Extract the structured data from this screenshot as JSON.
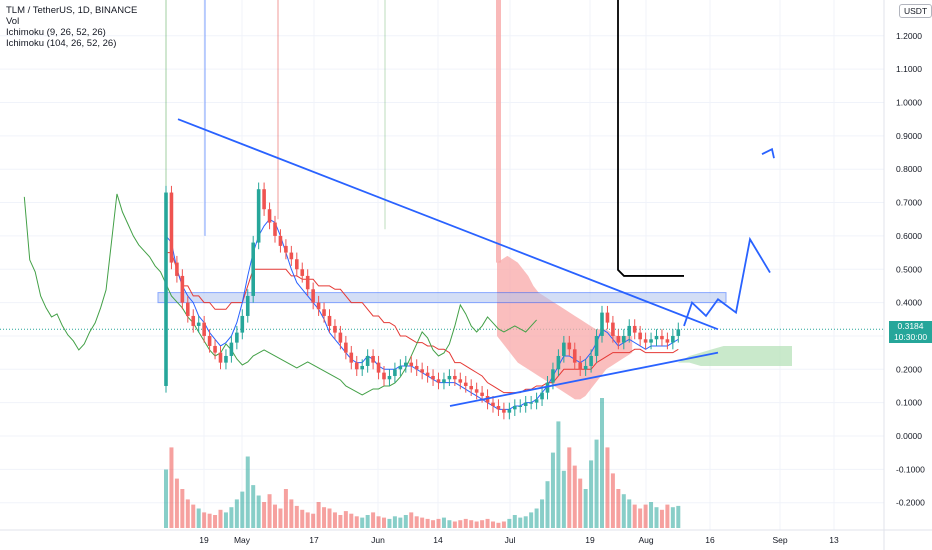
{
  "header": {
    "symbol": "TLM / TetherUS, 1D, BINANCE",
    "indicators": [
      "Vol",
      "Ichimoku (9, 26, 52, 26)",
      "Ichimoku (104, 26, 52, 26)"
    ]
  },
  "price_axis": {
    "currency": "USDT",
    "last_price": "0.3184",
    "countdown": "10:30:00"
  },
  "colors": {
    "up": "#26a69a",
    "down": "#ef5350",
    "trendline": "#2962ff",
    "kijun": "#e53935",
    "tenkan": "#2962ff",
    "lagging": "#43a047",
    "kumo_bear": "#f8a8a8",
    "kumo_bull": "#b7e1b9",
    "zone_fill": "#b0c4f0",
    "target_line": "#000000"
  },
  "chart_data": {
    "type": "candlestick",
    "title": "TLM / TetherUS, 1D, BINANCE",
    "x_ticks": [
      "19",
      "May",
      "17",
      "Jun",
      "14",
      "Jul",
      "19",
      "Aug",
      "16",
      "Sep",
      "13"
    ],
    "y_ticks": [
      "1.2000",
      "1.1000",
      "1.0000",
      "0.9000",
      "0.8000",
      "0.7000",
      "0.6000",
      "0.5000",
      "0.4000",
      "0.3000",
      "0.2000",
      "0.1000",
      "0.0000",
      "-0.1000",
      "-0.2000"
    ],
    "ylim": [
      -0.25,
      1.28
    ],
    "close": [
      0.73,
      0.52,
      0.48,
      0.4,
      0.36,
      0.33,
      0.34,
      0.3,
      0.27,
      0.25,
      0.22,
      0.24,
      0.28,
      0.31,
      0.36,
      0.42,
      0.58,
      0.74,
      0.68,
      0.64,
      0.6,
      0.57,
      0.55,
      0.53,
      0.5,
      0.48,
      0.44,
      0.4,
      0.38,
      0.36,
      0.33,
      0.31,
      0.28,
      0.25,
      0.22,
      0.2,
      0.21,
      0.24,
      0.22,
      0.19,
      0.17,
      0.18,
      0.2,
      0.21,
      0.22,
      0.21,
      0.2,
      0.19,
      0.18,
      0.17,
      0.16,
      0.17,
      0.18,
      0.17,
      0.16,
      0.15,
      0.14,
      0.13,
      0.12,
      0.1,
      0.09,
      0.08,
      0.07,
      0.08,
      0.09,
      0.09,
      0.1,
      0.1,
      0.11,
      0.13,
      0.16,
      0.2,
      0.24,
      0.28,
      0.26,
      0.22,
      0.2,
      0.21,
      0.24,
      0.3,
      0.37,
      0.34,
      0.3,
      0.28,
      0.3,
      0.33,
      0.31,
      0.29,
      0.28,
      0.29,
      0.3,
      0.29,
      0.28,
      0.3,
      0.32
    ],
    "volume": [
      0.45,
      0.62,
      0.38,
      0.3,
      0.22,
      0.18,
      0.15,
      0.12,
      0.11,
      0.1,
      0.14,
      0.12,
      0.16,
      0.22,
      0.28,
      0.55,
      0.33,
      0.25,
      0.2,
      0.26,
      0.18,
      0.15,
      0.3,
      0.22,
      0.17,
      0.14,
      0.12,
      0.11,
      0.2,
      0.16,
      0.15,
      0.12,
      0.1,
      0.13,
      0.11,
      0.09,
      0.08,
      0.1,
      0.12,
      0.09,
      0.08,
      0.07,
      0.09,
      0.08,
      0.1,
      0.12,
      0.09,
      0.08,
      0.07,
      0.06,
      0.07,
      0.08,
      0.06,
      0.05,
      0.06,
      0.07,
      0.06,
      0.05,
      0.06,
      0.07,
      0.05,
      0.04,
      0.05,
      0.07,
      0.1,
      0.08,
      0.09,
      0.12,
      0.15,
      0.22,
      0.36,
      0.58,
      0.82,
      0.44,
      0.62,
      0.48,
      0.38,
      0.3,
      0.52,
      0.68,
      1.0,
      0.62,
      0.42,
      0.3,
      0.26,
      0.22,
      0.18,
      0.15,
      0.18,
      0.2,
      0.16,
      0.14,
      0.18,
      0.16,
      0.17
    ],
    "tenkan": [
      0.6,
      0.58,
      0.5,
      0.45,
      0.42,
      0.4,
      0.36,
      0.34,
      0.31,
      0.29,
      0.27,
      0.28,
      0.3,
      0.34,
      0.4,
      0.48,
      0.55,
      0.6,
      0.63,
      0.65,
      0.64,
      0.6,
      0.55,
      0.5,
      0.46,
      0.44,
      0.42,
      0.4,
      0.38,
      0.35,
      0.31,
      0.29,
      0.27,
      0.25,
      0.23,
      0.22,
      0.22,
      0.24,
      0.23,
      0.21,
      0.2,
      0.2,
      0.2,
      0.21,
      0.21,
      0.21,
      0.2,
      0.19,
      0.18,
      0.17,
      0.16,
      0.16,
      0.16,
      0.16,
      0.15,
      0.14,
      0.13,
      0.12,
      0.11,
      0.1,
      0.09,
      0.08,
      0.08,
      0.08,
      0.09,
      0.09,
      0.1,
      0.1,
      0.11,
      0.13,
      0.15,
      0.18,
      0.21,
      0.24,
      0.24,
      0.23,
      0.22,
      0.23,
      0.25,
      0.28,
      0.32,
      0.31,
      0.29,
      0.27,
      0.28,
      0.29,
      0.28,
      0.27,
      0.26,
      0.27,
      0.27,
      0.27,
      0.27,
      0.28,
      0.29
    ],
    "kijun": [
      0.55,
      0.55,
      0.5,
      0.45,
      0.45,
      0.42,
      0.42,
      0.4,
      0.4,
      0.38,
      0.38,
      0.38,
      0.4,
      0.4,
      0.4,
      0.45,
      0.5,
      0.5,
      0.5,
      0.5,
      0.5,
      0.5,
      0.5,
      0.48,
      0.48,
      0.47,
      0.47,
      0.47,
      0.45,
      0.45,
      0.45,
      0.44,
      0.44,
      0.42,
      0.4,
      0.4,
      0.4,
      0.38,
      0.36,
      0.36,
      0.34,
      0.34,
      0.33,
      0.3,
      0.3,
      0.29,
      0.28,
      0.28,
      0.27,
      0.27,
      0.26,
      0.26,
      0.25,
      0.22,
      0.22,
      0.21,
      0.2,
      0.19,
      0.18,
      0.16,
      0.15,
      0.14,
      0.13,
      0.13,
      0.13,
      0.13,
      0.14,
      0.14,
      0.15,
      0.15,
      0.16,
      0.16,
      0.18,
      0.2,
      0.2,
      0.2,
      0.2,
      0.2,
      0.2,
      0.22,
      0.23,
      0.24,
      0.25,
      0.25,
      0.25,
      0.25,
      0.26,
      0.26,
      0.25,
      0.25,
      0.25,
      0.25,
      0.25,
      0.25,
      0.26
    ],
    "kumo_red": {
      "top": [
        0.52,
        0.53,
        0.54,
        0.53,
        0.52,
        0.5,
        0.48,
        0.45,
        0.43,
        0.42,
        0.41,
        0.4,
        0.39,
        0.38,
        0.37,
        0.36,
        0.35,
        0.34,
        0.33,
        0.32,
        0.32,
        0.32,
        0.31,
        0.3,
        0.3,
        0.3,
        0.3
      ],
      "bottom": [
        0.3,
        0.28,
        0.26,
        0.24,
        0.22,
        0.21,
        0.2,
        0.19,
        0.18,
        0.17,
        0.16,
        0.15,
        0.14,
        0.13,
        0.12,
        0.11,
        0.11,
        0.12,
        0.14,
        0.16,
        0.18,
        0.2,
        0.21,
        0.22,
        0.23,
        0.24,
        0.25
      ]
    },
    "kumo_green": {
      "top": [
        0.22,
        0.24,
        0.25,
        0.26,
        0.27,
        0.27,
        0.27,
        0.27,
        0.27,
        0.27,
        0.27
      ],
      "bottom": [
        0.22,
        0.22,
        0.21,
        0.21,
        0.21,
        0.21,
        0.21,
        0.21,
        0.21,
        0.21,
        0.21
      ]
    },
    "drawings": {
      "descending_resistance": [
        [
          0.95,
          0.32
        ]
      ],
      "ascending_support": [
        [
          0.09,
          0.25
        ]
      ],
      "horizontal_zone": [
        0.4,
        0.43
      ],
      "projection_path": [
        0.33,
        0.4,
        0.36,
        0.41,
        0.37,
        0.59,
        0.49,
        0.86
      ],
      "target_line": [
        0.48,
        0.48
      ]
    }
  }
}
